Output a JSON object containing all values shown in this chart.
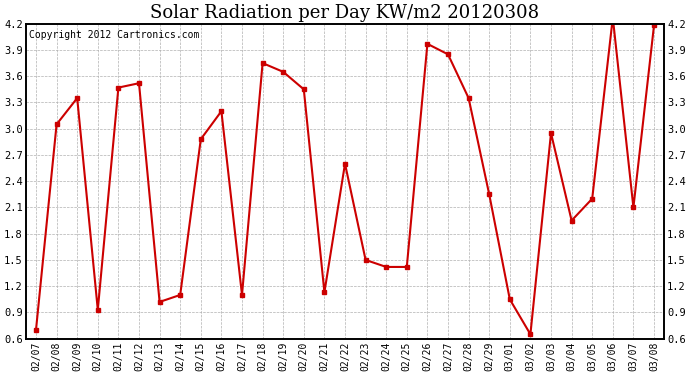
{
  "title": "Solar Radiation per Day KW/m2 20120308",
  "copyright_text": "Copyright 2012 Cartronics.com",
  "dates": [
    "02/07",
    "02/08",
    "02/09",
    "02/10",
    "02/11",
    "02/12",
    "02/13",
    "02/14",
    "02/15",
    "02/16",
    "02/17",
    "02/18",
    "02/19",
    "02/20",
    "02/21",
    "02/22",
    "02/23",
    "02/24",
    "02/25",
    "02/26",
    "02/27",
    "02/28",
    "02/29",
    "03/01",
    "03/02",
    "03/03",
    "03/04",
    "03/05",
    "03/06",
    "03/07",
    "03/08"
  ],
  "values": [
    0.7,
    3.05,
    3.35,
    0.93,
    3.47,
    3.52,
    1.02,
    1.1,
    2.88,
    3.2,
    1.1,
    3.75,
    3.65,
    3.45,
    1.13,
    2.6,
    1.5,
    1.42,
    1.42,
    3.97,
    3.85,
    3.35,
    2.25,
    1.05,
    0.65,
    2.95,
    1.95,
    2.2,
    4.27,
    2.1,
    4.18
  ],
  "ylim": [
    0.6,
    4.2
  ],
  "yticks": [
    0.6,
    0.9,
    1.2,
    1.5,
    1.8,
    2.1,
    2.4,
    2.7,
    3.0,
    3.3,
    3.6,
    3.9,
    4.2
  ],
  "line_color": "#cc0000",
  "marker_size": 3,
  "bg_color": "#ffffff",
  "grid_color": "#b0b0b0",
  "title_fontsize": 13,
  "copyright_fontsize": 7,
  "tick_fontsize": 7,
  "ytick_fontsize": 7.5
}
